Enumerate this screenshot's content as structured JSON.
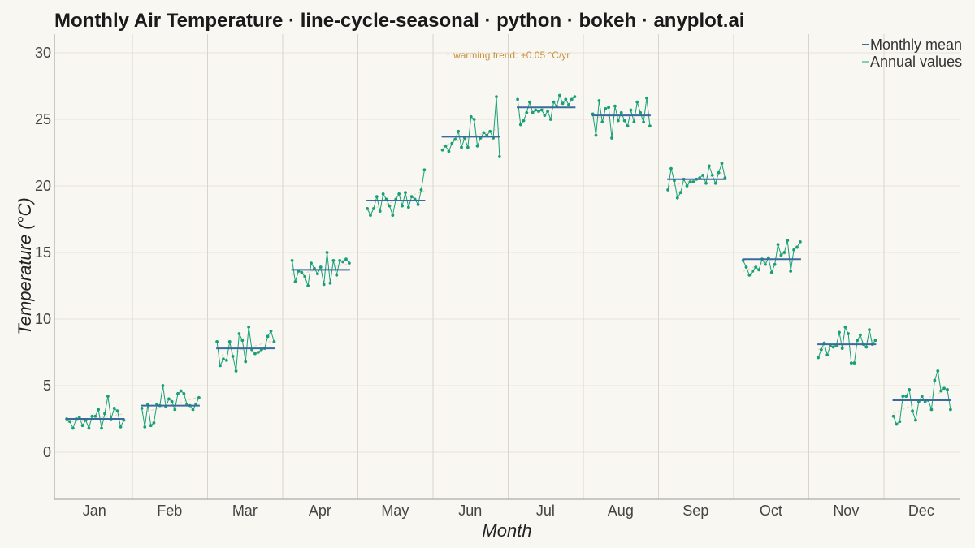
{
  "chart_data": {
    "type": "line",
    "title": "Monthly Air Temperature · line-cycle-seasonal · python · bokeh · anyplot.ai",
    "xlabel": "Month",
    "ylabel": "Temperature (°C)",
    "ylim": [
      -3.5,
      31.5
    ],
    "yticks": [
      0,
      5,
      10,
      15,
      20,
      25,
      30
    ],
    "grid": true,
    "legend_position": "top-right",
    "categories": [
      "Jan",
      "Feb",
      "Mar",
      "Apr",
      "May",
      "Jun",
      "Jul",
      "Aug",
      "Sep",
      "Oct",
      "Nov",
      "Dec"
    ],
    "legend": [
      "Monthly mean",
      "Annual values"
    ],
    "annotation": "↑ warming trend: +0.05 °C/yr",
    "colors": {
      "mean": "#3A6A9E",
      "annual": "#17A078",
      "annotation": "#C8913E",
      "trend": "#C8913E"
    },
    "series": [
      {
        "name": "Monthly mean",
        "values": [
          2.5,
          3.5,
          7.8,
          13.7,
          18.9,
          23.7,
          25.9,
          25.3,
          20.5,
          14.5,
          8.1,
          3.9
        ]
      },
      {
        "name": "Annual values",
        "values": [
          [
            2.5,
            2.3,
            1.8,
            2.5,
            2.6,
            2.0,
            2.4,
            1.8,
            2.7,
            2.7,
            3.2,
            1.8,
            2.9,
            4.2,
            2.5,
            3.3,
            3.1,
            1.9,
            2.4
          ],
          [
            3.3,
            1.9,
            3.6,
            2.0,
            2.2,
            3.6,
            3.5,
            5.0,
            3.4,
            4.0,
            3.8,
            3.2,
            4.4,
            4.6,
            4.4,
            3.6,
            3.5,
            3.2,
            3.6,
            4.1
          ],
          [
            8.3,
            6.5,
            7.0,
            6.9,
            8.3,
            7.2,
            6.1,
            8.9,
            8.4,
            6.8,
            9.4,
            7.7,
            7.4,
            7.5,
            7.7,
            7.8,
            8.7,
            9.1,
            8.3
          ],
          [
            14.4,
            12.8,
            13.6,
            13.5,
            13.2,
            12.5,
            14.2,
            13.8,
            13.4,
            13.9,
            12.6,
            15.0,
            12.7,
            14.4,
            13.3,
            14.4,
            14.3,
            14.5,
            14.2
          ],
          [
            18.3,
            17.8,
            18.3,
            19.2,
            18.1,
            19.4,
            19.0,
            18.5,
            17.8,
            19.0,
            19.4,
            18.5,
            19.5,
            18.4,
            19.2,
            19.0,
            18.6,
            19.7,
            21.2
          ],
          [
            22.7,
            23.0,
            22.6,
            23.2,
            23.5,
            24.1,
            22.9,
            23.6,
            22.9,
            25.2,
            25.0,
            23.0,
            23.6,
            24.0,
            23.8,
            24.1,
            23.6,
            26.7,
            22.2
          ],
          [
            26.5,
            24.6,
            24.9,
            25.5,
            26.3,
            25.5,
            25.7,
            25.6,
            25.7,
            25.3,
            25.6,
            25.0,
            26.3,
            26.0,
            26.8,
            26.2,
            26.5,
            26.1,
            26.5,
            26.7
          ],
          [
            25.4,
            23.8,
            26.4,
            24.8,
            25.8,
            25.9,
            23.6,
            26.0,
            24.9,
            25.5,
            24.9,
            24.5,
            25.7,
            24.8,
            26.3,
            25.5,
            24.8,
            26.6,
            24.5
          ],
          [
            19.7,
            21.3,
            20.4,
            19.1,
            19.5,
            20.5,
            20.0,
            20.3,
            20.3,
            20.5,
            20.6,
            20.8,
            20.2,
            21.5,
            20.8,
            20.2,
            21.0,
            21.7,
            20.6
          ],
          [
            14.4,
            13.9,
            13.3,
            13.6,
            13.9,
            13.7,
            14.5,
            14.1,
            14.6,
            13.5,
            14.1,
            15.6,
            14.8,
            15.0,
            15.9,
            13.6,
            15.2,
            15.4,
            15.8
          ],
          [
            7.1,
            7.7,
            8.2,
            7.3,
            8.0,
            7.9,
            8.0,
            9.0,
            7.8,
            9.4,
            8.9,
            6.7,
            6.7,
            8.4,
            8.8,
            8.1,
            7.9,
            9.2,
            8.1,
            8.4
          ],
          [
            2.7,
            2.1,
            2.3,
            4.2,
            4.2,
            4.7,
            3.1,
            2.4,
            3.8,
            4.2,
            3.8,
            3.9,
            3.2,
            5.4,
            6.1,
            4.6,
            4.8,
            4.7,
            3.2
          ]
        ]
      }
    ]
  }
}
